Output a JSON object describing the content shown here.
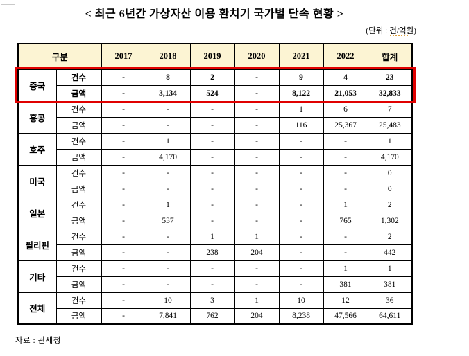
{
  "title": "< 최근 6년간 가상자산 이용 환치기 국가별 단속 현황 >",
  "unit_label": "(단위 : 건/억원)",
  "source_label": "자료 : 관세청",
  "colors": {
    "header_bg": "#FCF4D3",
    "highlight_border": "#E00000",
    "border": "#000000",
    "corner_mark": "#C9C9C9"
  },
  "table": {
    "header": {
      "category": "구분",
      "years": [
        "2017",
        "2018",
        "2019",
        "2020",
        "2021",
        "2022"
      ],
      "total": "합계"
    },
    "row_labels": {
      "count": "건수",
      "amount": "금액"
    },
    "groups": [
      {
        "country": "중국",
        "highlighted": true,
        "count": [
          "-",
          "8",
          "2",
          "-",
          "9",
          "4",
          "23"
        ],
        "amount": [
          "-",
          "3,134",
          "524",
          "-",
          "8,122",
          "21,053",
          "32,833"
        ]
      },
      {
        "country": "홍콩",
        "highlighted": false,
        "count": [
          "-",
          "-",
          "-",
          "-",
          "1",
          "6",
          "7"
        ],
        "amount": [
          "-",
          "-",
          "-",
          "-",
          "116",
          "25,367",
          "25,483"
        ]
      },
      {
        "country": "호주",
        "highlighted": false,
        "count": [
          "-",
          "1",
          "-",
          "-",
          "-",
          "-",
          "1"
        ],
        "amount": [
          "-",
          "4,170",
          "-",
          "-",
          "-",
          "-",
          "4,170"
        ]
      },
      {
        "country": "미국",
        "highlighted": false,
        "count": [
          "-",
          "-",
          "-",
          "-",
          "-",
          "-",
          "0"
        ],
        "amount": [
          "-",
          "-",
          "-",
          "-",
          "-",
          "-",
          "0"
        ]
      },
      {
        "country": "일본",
        "highlighted": false,
        "count": [
          "-",
          "1",
          "-",
          "-",
          "-",
          "1",
          "2"
        ],
        "amount": [
          "-",
          "537",
          "-",
          "-",
          "-",
          "765",
          "1,302"
        ]
      },
      {
        "country": "필리핀",
        "highlighted": false,
        "count": [
          "-",
          "-",
          "1",
          "1",
          "-",
          "-",
          "2"
        ],
        "amount": [
          "-",
          "-",
          "238",
          "204",
          "-",
          "-",
          "442"
        ]
      },
      {
        "country": "기타",
        "highlighted": false,
        "count": [
          "-",
          "-",
          "-",
          "-",
          "-",
          "1",
          "1"
        ],
        "amount": [
          "-",
          "-",
          "-",
          "-",
          "-",
          "381",
          "381"
        ]
      },
      {
        "country": "전체",
        "highlighted": false,
        "count": [
          "-",
          "10",
          "3",
          "1",
          "10",
          "12",
          "36"
        ],
        "amount": [
          "-",
          "7,841",
          "762",
          "204",
          "8,238",
          "47,566",
          "64,611"
        ]
      }
    ]
  }
}
